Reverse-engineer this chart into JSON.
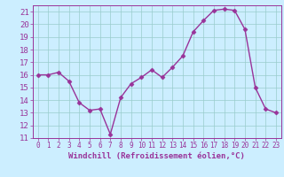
{
  "x": [
    0,
    1,
    2,
    3,
    4,
    5,
    6,
    7,
    8,
    9,
    10,
    11,
    12,
    13,
    14,
    15,
    16,
    17,
    18,
    19,
    20,
    21,
    22,
    23
  ],
  "y": [
    16,
    16,
    16.2,
    15.5,
    13.8,
    13.2,
    13.3,
    11.3,
    14.2,
    15.3,
    15.8,
    16.4,
    15.8,
    16.6,
    17.5,
    19.4,
    20.3,
    21.1,
    21.2,
    21.1,
    19.6,
    15.0,
    13.3,
    13.0
  ],
  "line_color": "#993399",
  "marker_color": "#993399",
  "bg_color": "#cceeff",
  "grid_color": "#99cccc",
  "xlabel": "Windchill (Refroidissement éolien,°C)",
  "xlim": [
    -0.5,
    23.5
  ],
  "ylim": [
    11,
    21.5
  ],
  "yticks": [
    11,
    12,
    13,
    14,
    15,
    16,
    17,
    18,
    19,
    20,
    21
  ],
  "xticks": [
    0,
    1,
    2,
    3,
    4,
    5,
    6,
    7,
    8,
    9,
    10,
    11,
    12,
    13,
    14,
    15,
    16,
    17,
    18,
    19,
    20,
    21,
    22,
    23
  ],
  "axis_color": "#993399",
  "tick_color": "#993399",
  "label_color": "#993399"
}
